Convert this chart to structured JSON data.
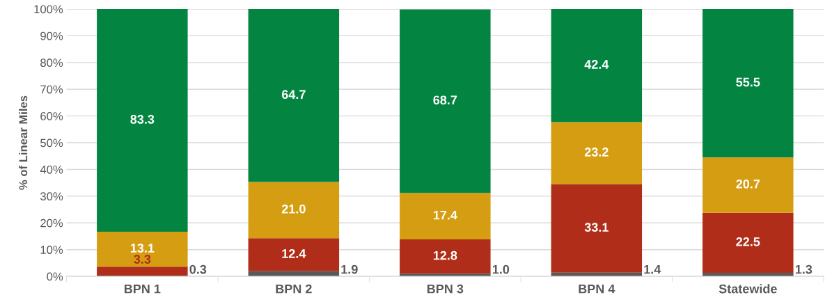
{
  "chart_data": {
    "type": "bar",
    "stacked": true,
    "ylabel": "% of Linear Miles",
    "categories": [
      "BPN 1",
      "BPN 2",
      "BPN 3",
      "BPN 4",
      "Statewide"
    ],
    "series": [
      {
        "color": "#595959",
        "values": [
          0.3,
          1.9,
          1.0,
          1.4,
          1.3
        ],
        "value_labels": [
          "0.3",
          "1.9",
          "1.0",
          "1.4",
          "1.3"
        ]
      },
      {
        "color": "#b02e19",
        "values": [
          3.3,
          12.4,
          12.8,
          33.1,
          22.5
        ],
        "value_labels": [
          "3.3",
          "12.4",
          "12.8",
          "33.1",
          "22.5"
        ]
      },
      {
        "color": "#d59e12",
        "values": [
          13.1,
          21.0,
          17.4,
          23.2,
          20.7
        ],
        "value_labels": [
          "13.1",
          "21.0",
          "17.4",
          "23.2",
          "20.7"
        ]
      },
      {
        "color": "#038541",
        "values": [
          83.3,
          64.7,
          68.7,
          42.4,
          55.5
        ],
        "value_labels": [
          "83.3",
          "64.7",
          "68.7",
          "42.4",
          "55.5"
        ]
      }
    ],
    "ylim": [
      0,
      100
    ],
    "yticks": [
      {
        "value": 0,
        "label": "0%"
      },
      {
        "value": 10,
        "label": "10%"
      },
      {
        "value": 20,
        "label": "20%"
      },
      {
        "value": 30,
        "label": "30%"
      },
      {
        "value": 40,
        "label": "40%"
      },
      {
        "value": 50,
        "label": "50%"
      },
      {
        "value": 60,
        "label": "60%"
      },
      {
        "value": 70,
        "label": "70%"
      },
      {
        "value": 80,
        "label": "80%"
      },
      {
        "value": 90,
        "label": "90%"
      },
      {
        "value": 100,
        "label": "100%"
      }
    ],
    "grid": "y"
  }
}
